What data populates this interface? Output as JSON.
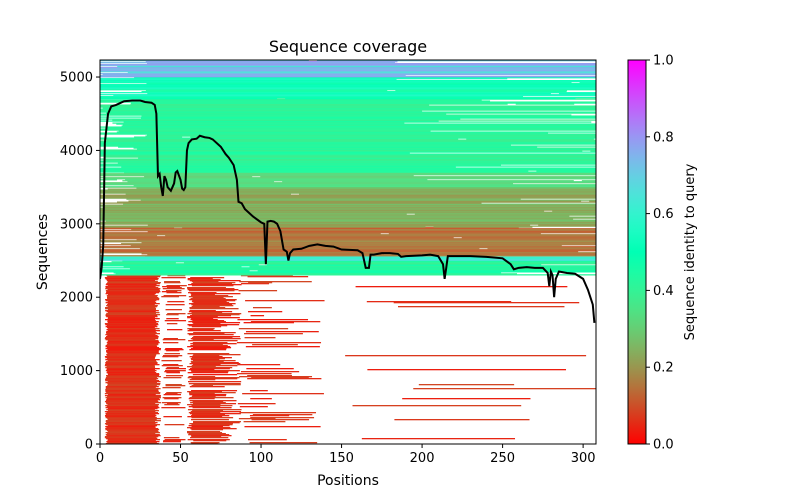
{
  "chart_data": {
    "type": "heatmap",
    "title": "Sequence coverage",
    "xlabel": "Positions",
    "ylabel": "Sequences",
    "xlim": [
      0,
      308
    ],
    "ylim": [
      0,
      5232
    ],
    "xticks": [
      0,
      50,
      100,
      150,
      200,
      250,
      300
    ],
    "yticks": [
      0,
      1000,
      2000,
      3000,
      4000,
      5000
    ],
    "colorbar": {
      "label": "Sequence identity to query",
      "colormap": "rainbow_r",
      "range": [
        0,
        1
      ],
      "ticks": [
        "0.0",
        "0.2",
        "0.4",
        "0.6",
        "0.8",
        "1.0"
      ]
    },
    "grid": false,
    "msa_bands": [
      {
        "seq": [
          0,
          2300
        ],
        "identity": [
          0.03,
          0.09
        ],
        "coverage": "partial-n-terminal"
      },
      {
        "seq": [
          2300,
          2500
        ],
        "identity": [
          0.38,
          0.48
        ],
        "coverage": "full"
      },
      {
        "seq": [
          2500,
          2560
        ],
        "identity": [
          0.6,
          0.8
        ],
        "coverage": "full"
      },
      {
        "seq": [
          2560,
          2950
        ],
        "identity": [
          0.1,
          0.2
        ],
        "coverage": "full"
      },
      {
        "seq": [
          2950,
          3500
        ],
        "identity": [
          0.2,
          0.28
        ],
        "coverage": "full"
      },
      {
        "seq": [
          3500,
          3700
        ],
        "identity": [
          0.3,
          0.36
        ],
        "coverage": "full"
      },
      {
        "seq": [
          3700,
          4700
        ],
        "identity": [
          0.38,
          0.45
        ],
        "coverage": "full"
      },
      {
        "seq": [
          4700,
          5000
        ],
        "identity": [
          0.44,
          0.56
        ],
        "coverage": "full"
      },
      {
        "seq": [
          5000,
          5232
        ],
        "identity": [
          0.58,
          0.82
        ],
        "coverage": "full"
      }
    ],
    "coverage_line": {
      "color": "#000000",
      "x": [
        0,
        1,
        2,
        3,
        5,
        7,
        10,
        12,
        15,
        20,
        25,
        28,
        32,
        34,
        35,
        36,
        37,
        38,
        39,
        40,
        41,
        42,
        44,
        46,
        47,
        48,
        50,
        51,
        52,
        53,
        54,
        55,
        57,
        60,
        62,
        65,
        68,
        70,
        75,
        78,
        80,
        83,
        85,
        86,
        88,
        90,
        95,
        100,
        102,
        103,
        104,
        106,
        108,
        110,
        112,
        114,
        116,
        117,
        118,
        120,
        125,
        130,
        135,
        140,
        145,
        150,
        160,
        163,
        165,
        167,
        168,
        170,
        175,
        180,
        185,
        187,
        190,
        200,
        205,
        210,
        213,
        214,
        215,
        216,
        220,
        230,
        240,
        250,
        255,
        257,
        260,
        265,
        270,
        275,
        278,
        279,
        280,
        281,
        282,
        283,
        285,
        290,
        295,
        300,
        303,
        306,
        307
      ],
      "y": [
        2250,
        2400,
        2700,
        4100,
        4500,
        4600,
        4620,
        4640,
        4670,
        4680,
        4680,
        4660,
        4650,
        4620,
        4500,
        3650,
        3680,
        3500,
        3380,
        3650,
        3600,
        3500,
        3450,
        3550,
        3700,
        3720,
        3600,
        3480,
        3460,
        3500,
        4000,
        4100,
        4150,
        4160,
        4200,
        4180,
        4170,
        4150,
        4050,
        3950,
        3900,
        3800,
        3600,
        3300,
        3280,
        3200,
        3100,
        3020,
        3000,
        2450,
        3030,
        3040,
        3030,
        3000,
        2900,
        2650,
        2620,
        2500,
        2600,
        2650,
        2660,
        2700,
        2720,
        2700,
        2690,
        2650,
        2640,
        2600,
        2400,
        2400,
        2580,
        2580,
        2600,
        2600,
        2590,
        2550,
        2560,
        2570,
        2580,
        2560,
        2450,
        2250,
        2400,
        2560,
        2560,
        2560,
        2550,
        2530,
        2450,
        2380,
        2400,
        2410,
        2400,
        2400,
        2330,
        2150,
        2350,
        2300,
        2000,
        2250,
        2350,
        2330,
        2320,
        2250,
        2100,
        1900,
        1650
      ]
    }
  }
}
